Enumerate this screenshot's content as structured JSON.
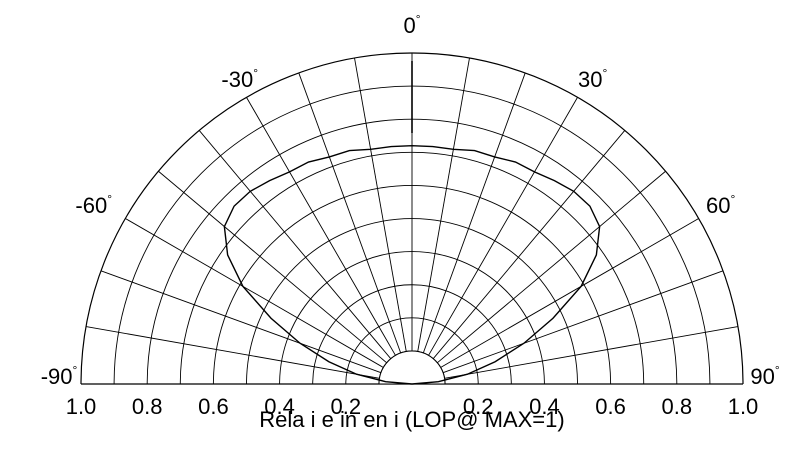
{
  "chart_data": {
    "type": "polar",
    "title": "",
    "xlabel": "Rela i e in en i   (LOP@ MAX=1)",
    "angle_range": [
      -90,
      90
    ],
    "radial_range": [
      0,
      1
    ],
    "angle_ticks": [
      {
        "value": -90,
        "label": "-90"
      },
      {
        "value": -60,
        "label": "-60"
      },
      {
        "value": -30,
        "label": "-30"
      },
      {
        "value": 0,
        "label": "0"
      },
      {
        "value": 30,
        "label": "30"
      },
      {
        "value": 60,
        "label": "60"
      },
      {
        "value": 90,
        "label": "90"
      }
    ],
    "radial_ticks_left": [
      "1.0",
      "0.8",
      "0.6",
      "0.4",
      "0.2"
    ],
    "radial_ticks_right": [
      "0.2",
      "0.4",
      "0.6",
      "0.8",
      "1.0"
    ],
    "radial_tick_values_left": [
      1.0,
      0.8,
      0.6,
      0.4,
      0.2
    ],
    "radial_tick_values_right": [
      0.2,
      0.4,
      0.6,
      0.8,
      1.0
    ],
    "degree_symbol": "°",
    "grid": true,
    "series": [
      {
        "angles": [
          -90,
          -85,
          -80,
          -75,
          -70,
          -65,
          -60,
          -55,
          -50,
          -45,
          -40,
          -35,
          -30,
          -25,
          -20,
          -15,
          -10,
          -5,
          0,
          5,
          10,
          15,
          20,
          25,
          30,
          35,
          40,
          45,
          50,
          55,
          60,
          65,
          70,
          75,
          80,
          85,
          90
        ],
        "values": [
          0.0,
          0.08,
          0.17,
          0.26,
          0.36,
          0.47,
          0.59,
          0.68,
          0.74,
          0.76,
          0.76,
          0.75,
          0.74,
          0.74,
          0.73,
          0.73,
          0.72,
          0.72,
          0.72,
          0.72,
          0.72,
          0.73,
          0.73,
          0.74,
          0.74,
          0.75,
          0.76,
          0.76,
          0.74,
          0.68,
          0.59,
          0.47,
          0.36,
          0.26,
          0.17,
          0.08,
          0.0
        ]
      }
    ]
  }
}
